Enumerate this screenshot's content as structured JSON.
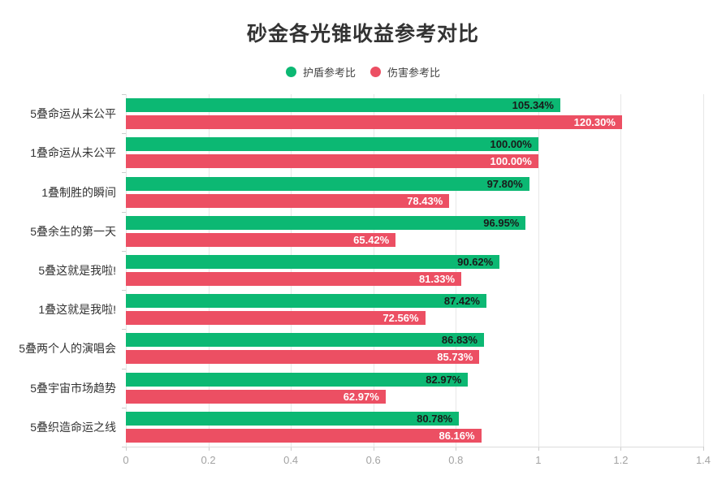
{
  "title": "砂金各光锥收益参考对比",
  "colors": {
    "shield_bar": "#0cb873",
    "damage_bar": "#ec4f63",
    "shield_value_text": "#1a1a1a",
    "damage_value_text": "#ffffff",
    "gridline": "#e7e7e7",
    "axis": "#dcdcdc",
    "tick_text": "#a3a3a3",
    "category_text": "#333333",
    "title_text": "#333333"
  },
  "chart_data": {
    "type": "bar",
    "orientation": "horizontal",
    "title": "砂金各光锥收益参考对比",
    "xlabel": "",
    "ylabel": "",
    "xlim": [
      0,
      1.4
    ],
    "x_ticks": [
      "0",
      "0.2",
      "0.4",
      "0.6",
      "0.8",
      "1",
      "1.2",
      "1.4"
    ],
    "x_tick_values": [
      0,
      0.2,
      0.4,
      0.6,
      0.8,
      1.0,
      1.2,
      1.4
    ],
    "grid": true,
    "legend_position": "top",
    "categories": [
      "5叠命运从未公平",
      "1叠命运从未公平",
      "1叠制胜的瞬间",
      "5叠余生的第一天",
      "5叠这就是我啦!",
      "1叠这就是我啦!",
      "5叠两个人的演唱会",
      "5叠宇宙市场趋势",
      "5叠织造命运之线"
    ],
    "series": [
      {
        "name": "护盾参考比",
        "color": "#0cb873",
        "label_color": "#1a1a1a",
        "values": [
          1.0534,
          1.0,
          0.978,
          0.9695,
          0.9062,
          0.8742,
          0.8683,
          0.8297,
          0.8078
        ],
        "labels": [
          "105.34%",
          "100.00%",
          "97.80%",
          "96.95%",
          "90.62%",
          "87.42%",
          "86.83%",
          "82.97%",
          "80.78%"
        ]
      },
      {
        "name": "伤害参考比",
        "color": "#ec4f63",
        "label_color": "#ffffff",
        "values": [
          1.203,
          1.0,
          0.7843,
          0.6542,
          0.8133,
          0.7256,
          0.8573,
          0.6297,
          0.8616
        ],
        "labels": [
          "120.30%",
          "100.00%",
          "78.43%",
          "65.42%",
          "81.33%",
          "72.56%",
          "85.73%",
          "62.97%",
          "86.16%"
        ]
      }
    ]
  }
}
